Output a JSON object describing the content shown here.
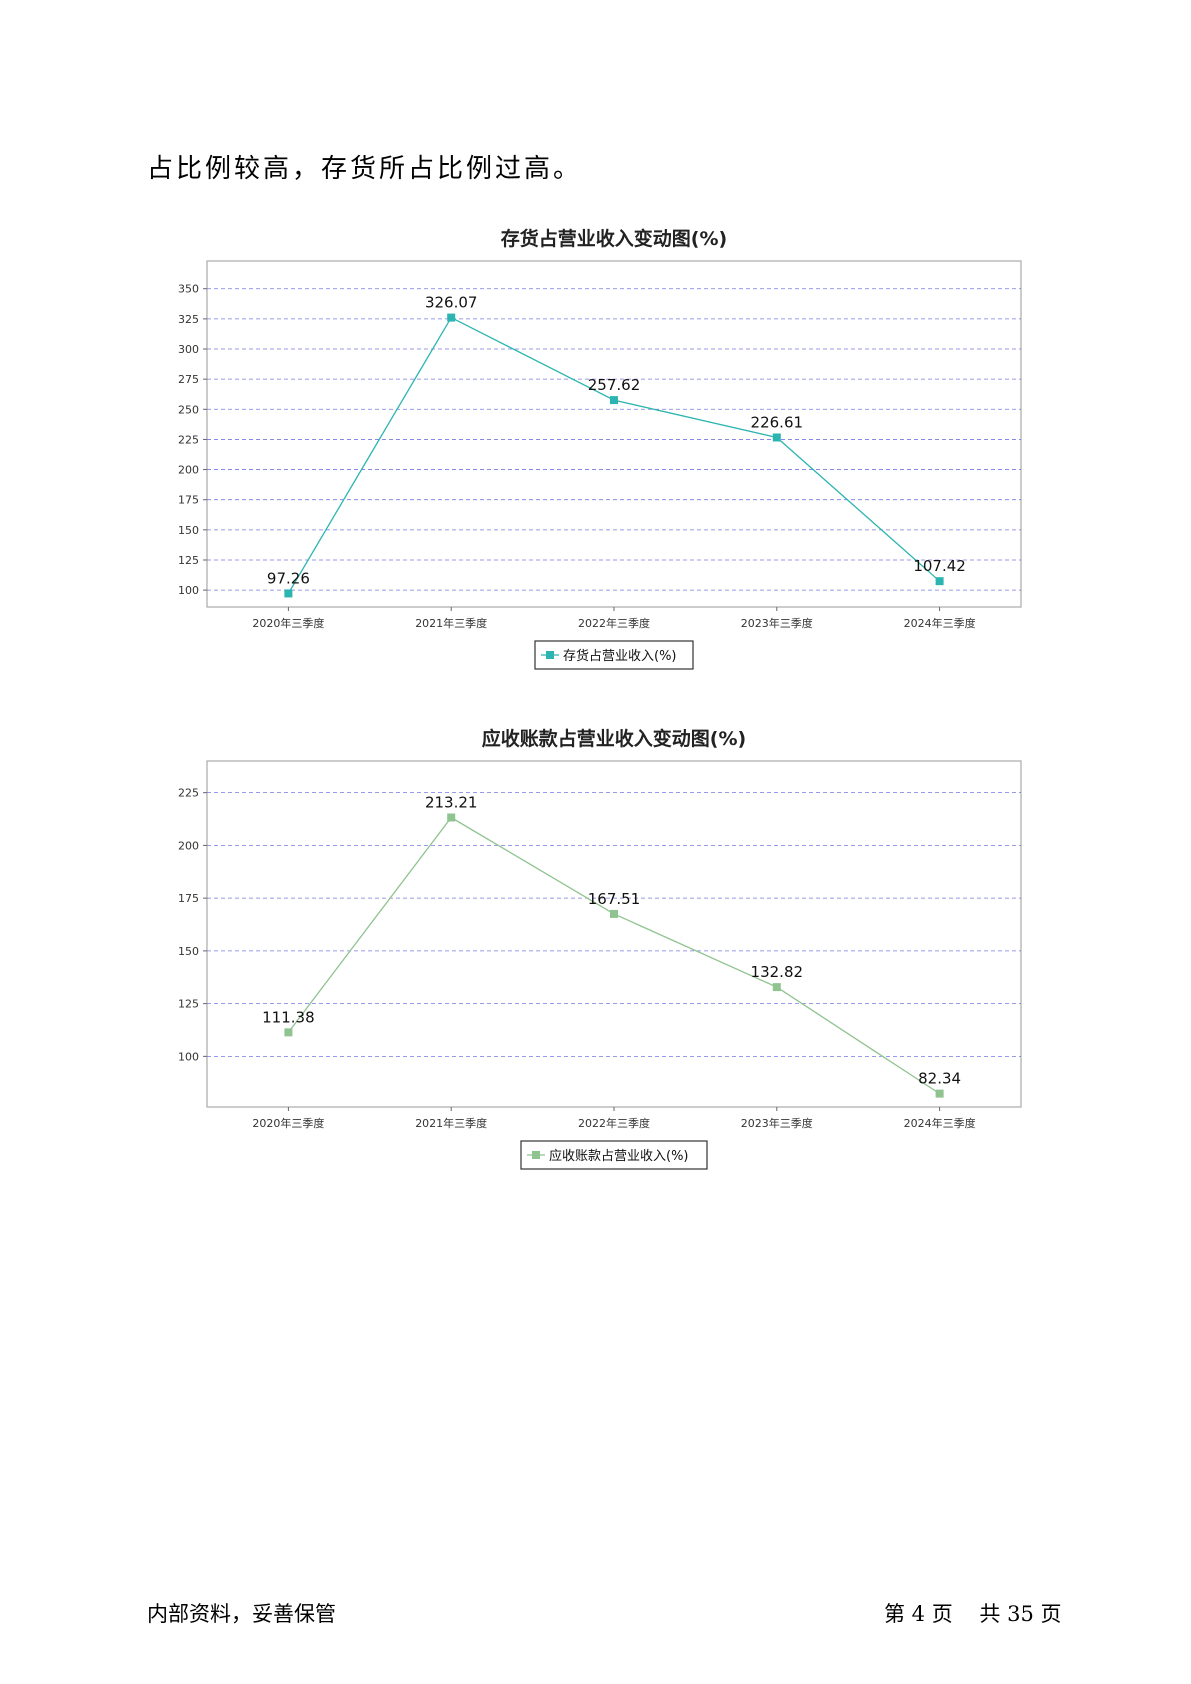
{
  "document": {
    "intro_text": "占比例较高，存货所占比例过高。",
    "footer_left": "内部资料，妥善保管",
    "footer_page": "第 4 页    共 35 页"
  },
  "chart_data": [
    {
      "type": "line",
      "title": "存货占营业收入变动图(%)",
      "categories": [
        "2020年三季度",
        "2021年三季度",
        "2022年三季度",
        "2023年三季度",
        "2024年三季度"
      ],
      "series": [
        {
          "name": "存货占营业收入(%)",
          "values": [
            97.26,
            326.07,
            257.62,
            226.61,
            107.42
          ],
          "color": "#2cb5b0"
        }
      ],
      "value_labels": [
        "97.26",
        "326.07",
        "257.62",
        "226.61",
        "107.42"
      ],
      "yticks": [
        100,
        125,
        150,
        175,
        200,
        225,
        250,
        275,
        300,
        325,
        350
      ],
      "ylim": [
        86,
        373
      ],
      "grid": true,
      "grid_color": "#7878e6",
      "legend": "bottom-center"
    },
    {
      "type": "line",
      "title": "应收账款占营业收入变动图(%)",
      "categories": [
        "2020年三季度",
        "2021年三季度",
        "2022年三季度",
        "2023年三季度",
        "2024年三季度"
      ],
      "series": [
        {
          "name": "应收账款占营业收入(%)",
          "values": [
            111.38,
            213.21,
            167.51,
            132.82,
            82.34
          ],
          "color": "#8fc38f"
        }
      ],
      "value_labels": [
        "111.38",
        "213.21",
        "167.51",
        "132.82",
        "82.34"
      ],
      "yticks": [
        100,
        125,
        150,
        175,
        200,
        225
      ],
      "ylim": [
        76,
        240
      ],
      "grid": true,
      "grid_color": "#7878e6",
      "legend": "bottom-center"
    }
  ]
}
